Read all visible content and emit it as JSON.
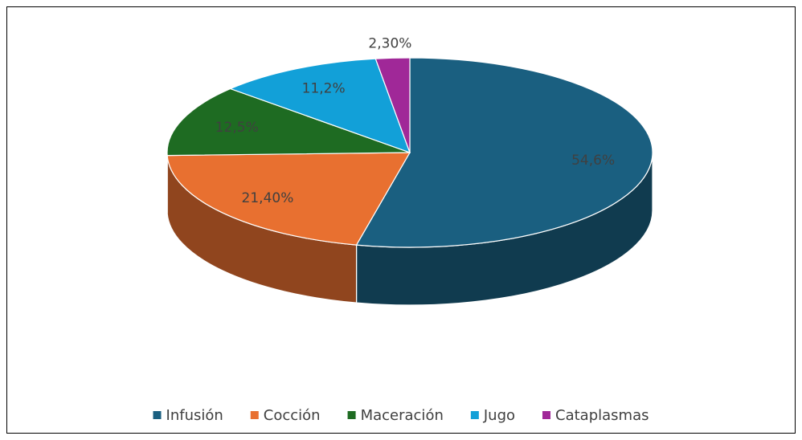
{
  "chart_data": {
    "type": "pie",
    "style": "3d",
    "categories": [
      "Infusión",
      "Cocción",
      "Maceración",
      "Jugo",
      "Cataplasmas"
    ],
    "values": [
      54.6,
      21.4,
      12.5,
      11.2,
      2.3
    ],
    "value_labels": [
      "54,6%",
      "21,40%",
      "12,5%",
      "11,2%",
      "2,30%"
    ],
    "colors": [
      "#1a5f80",
      "#e87030",
      "#1e6b22",
      "#12a0d8",
      "#a02898"
    ],
    "legend": "bottom"
  }
}
